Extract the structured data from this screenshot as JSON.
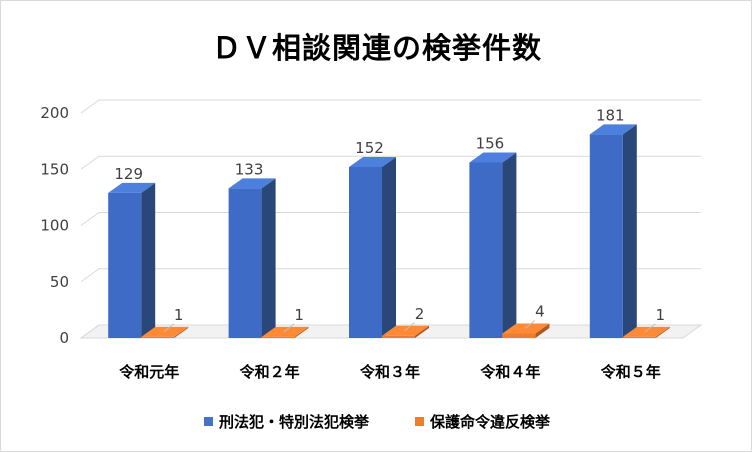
{
  "chart_data": {
    "type": "bar",
    "title": "ＤＶ相談関連の検挙件数",
    "categories": [
      "令和元年",
      "令和２年",
      "令和３年",
      "令和４年",
      "令和５年"
    ],
    "series": [
      {
        "name": "刑法犯・特別法犯検挙",
        "color": "#4472c4",
        "values": [
          129,
          133,
          152,
          156,
          181
        ]
      },
      {
        "name": "保護命令違反検挙",
        "color": "#ed7d31",
        "values": [
          1,
          1,
          2,
          4,
          1
        ]
      }
    ],
    "ylim": [
      0,
      200
    ],
    "yticks": [
      0,
      50,
      100,
      150,
      200
    ],
    "grid": true,
    "legend_position": "bottom",
    "style": "3d-column"
  }
}
